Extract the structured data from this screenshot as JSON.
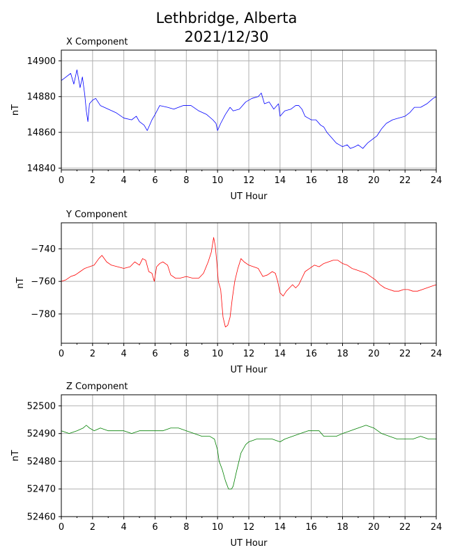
{
  "title_line1": "Lethbridge, Alberta",
  "title_line2": "2021/12/30",
  "chart_data": [
    {
      "type": "line",
      "title": "X Component",
      "xlabel": "UT Hour",
      "ylabel": "nT",
      "xlim": [
        0,
        24
      ],
      "ylim": [
        14839,
        14906
      ],
      "xticks": [
        0,
        2,
        4,
        6,
        8,
        10,
        12,
        14,
        16,
        18,
        20,
        22,
        24
      ],
      "yticks": [
        14840,
        14860,
        14880,
        14900
      ],
      "grid": true,
      "color": "#0000ff",
      "x": [
        0,
        0.3,
        0.6,
        0.8,
        1.0,
        1.1,
        1.2,
        1.35,
        1.5,
        1.6,
        1.7,
        1.8,
        2.0,
        2.2,
        2.5,
        3.0,
        3.5,
        4.0,
        4.5,
        4.8,
        5.0,
        5.3,
        5.5,
        5.8,
        6.0,
        6.3,
        6.8,
        7.2,
        7.8,
        8.3,
        8.8,
        9.3,
        9.7,
        9.9,
        10.0,
        10.2,
        10.5,
        10.8,
        11.0,
        11.4,
        11.8,
        12.2,
        12.6,
        12.8,
        13.0,
        13.3,
        13.6,
        13.9,
        14.0,
        14.3,
        14.7,
        15.0,
        15.2,
        15.4,
        15.6,
        15.8,
        16.0,
        16.3,
        16.6,
        16.8,
        17.0,
        17.3,
        17.6,
        17.8,
        18.0,
        18.3,
        18.5,
        18.8,
        19.0,
        19.3,
        19.6,
        19.9,
        20.2,
        20.5,
        20.8,
        21.2,
        21.6,
        22.0,
        22.3,
        22.6,
        23.0,
        23.4,
        23.8,
        24.0
      ],
      "y": [
        14889,
        14891,
        14893,
        14887,
        14895,
        14890,
        14885,
        14891,
        14881,
        14872,
        14866,
        14876,
        14878,
        14879,
        14875,
        14873,
        14871,
        14868,
        14867,
        14869,
        14866,
        14864,
        14861,
        14867,
        14870,
        14875,
        14874,
        14873,
        14875,
        14875,
        14872,
        14870,
        14867,
        14865,
        14861,
        14865,
        14870,
        14874,
        14872,
        14873,
        14877,
        14879,
        14880,
        14882,
        14876,
        14877,
        14873,
        14876,
        14869,
        14872,
        14873,
        14875,
        14875,
        14873,
        14869,
        14868,
        14867,
        14867,
        14864,
        14863,
        14860,
        14857,
        14854,
        14853,
        14852,
        14853,
        14851,
        14852,
        14853,
        14851,
        14854,
        14856,
        14858,
        14862,
        14865,
        14867,
        14868,
        14869,
        14871,
        14874,
        14874,
        14876,
        14879,
        14880
      ]
    },
    {
      "type": "line",
      "title": "Y Component",
      "xlabel": "UT Hour",
      "ylabel": "nT",
      "xlim": [
        0,
        24
      ],
      "ylim": [
        -798,
        -724
      ],
      "xticks": [
        0,
        2,
        4,
        6,
        8,
        10,
        12,
        14,
        16,
        18,
        20,
        22,
        24
      ],
      "yticks": [
        -740,
        -760,
        -780
      ],
      "grid": true,
      "color": "#ff0000",
      "x": [
        0,
        0.3,
        0.6,
        0.9,
        1.2,
        1.5,
        1.8,
        2.1,
        2.4,
        2.6,
        2.9,
        3.2,
        3.6,
        4.0,
        4.4,
        4.7,
        5.0,
        5.2,
        5.4,
        5.6,
        5.8,
        5.95,
        6.1,
        6.3,
        6.5,
        6.8,
        7.0,
        7.3,
        7.6,
        8.0,
        8.4,
        8.8,
        9.1,
        9.4,
        9.6,
        9.75,
        9.85,
        9.95,
        10.05,
        10.2,
        10.35,
        10.5,
        10.65,
        10.8,
        10.95,
        11.1,
        11.3,
        11.5,
        11.7,
        12.0,
        12.3,
        12.6,
        12.9,
        13.2,
        13.5,
        13.7,
        13.85,
        14.0,
        14.2,
        14.4,
        14.6,
        14.8,
        15.0,
        15.2,
        15.4,
        15.6,
        15.9,
        16.2,
        16.5,
        16.8,
        17.1,
        17.4,
        17.7,
        18.0,
        18.3,
        18.6,
        18.9,
        19.2,
        19.5,
        19.8,
        20.1,
        20.4,
        20.7,
        21.0,
        21.3,
        21.6,
        21.9,
        22.2,
        22.5,
        22.8,
        23.1,
        23.4,
        23.7,
        24.0
      ],
      "y": [
        -760,
        -759,
        -757,
        -756,
        -754,
        -752,
        -751,
        -750,
        -746,
        -744,
        -748,
        -750,
        -751,
        -752,
        -751,
        -748,
        -750,
        -746,
        -747,
        -754,
        -755,
        -760,
        -751,
        -749,
        -748,
        -750,
        -756,
        -758,
        -758,
        -757,
        -758,
        -758,
        -755,
        -748,
        -742,
        -733,
        -738,
        -748,
        -760,
        -765,
        -782,
        -788,
        -787,
        -782,
        -770,
        -760,
        -752,
        -746,
        -748,
        -750,
        -751,
        -752,
        -757,
        -756,
        -754,
        -755,
        -760,
        -767,
        -769,
        -766,
        -764,
        -762,
        -764,
        -762,
        -758,
        -754,
        -752,
        -750,
        -751,
        -749,
        -748,
        -747,
        -747,
        -749,
        -750,
        -752,
        -753,
        -754,
        -755,
        -757,
        -759,
        -762,
        -764,
        -765,
        -766,
        -766,
        -765,
        -765,
        -766,
        -766,
        -765,
        -764,
        -763,
        -762
      ]
    },
    {
      "type": "line",
      "title": "Z Component",
      "xlabel": "UT Hour",
      "ylabel": "nT",
      "xlim": [
        0,
        24
      ],
      "ylim": [
        52460,
        52504
      ],
      "xticks": [
        0,
        2,
        4,
        6,
        8,
        10,
        12,
        14,
        16,
        18,
        20,
        22,
        24
      ],
      "yticks": [
        52460,
        52470,
        52480,
        52490,
        52500
      ],
      "grid": true,
      "color": "#008000",
      "x": [
        0,
        0.5,
        1.0,
        1.4,
        1.6,
        1.8,
        2.1,
        2.5,
        3.0,
        3.5,
        4.0,
        4.5,
        5.0,
        5.5,
        6.0,
        6.5,
        7.0,
        7.5,
        8.0,
        8.5,
        9.0,
        9.5,
        9.8,
        10.0,
        10.1,
        10.3,
        10.5,
        10.7,
        10.9,
        11.0,
        11.2,
        11.5,
        11.8,
        12.0,
        12.5,
        13.0,
        13.5,
        14.0,
        14.3,
        14.8,
        15.3,
        15.8,
        16.2,
        16.5,
        16.8,
        17.2,
        17.6,
        18.0,
        18.5,
        19.0,
        19.5,
        20.0,
        20.5,
        21.0,
        21.5,
        22.0,
        22.5,
        23.0,
        23.5,
        24.0
      ],
      "y": [
        52491,
        52490,
        52491,
        52492,
        52493,
        52492,
        52491,
        52492,
        52491,
        52491,
        52491,
        52490,
        52491,
        52491,
        52491,
        52491,
        52492,
        52492,
        52491,
        52490,
        52489,
        52489,
        52488,
        52484,
        52480,
        52477,
        52473,
        52470,
        52470,
        52471,
        52476,
        52483,
        52486,
        52487,
        52488,
        52488,
        52488,
        52487,
        52488,
        52489,
        52490,
        52491,
        52491,
        52491,
        52489,
        52489,
        52489,
        52490,
        52491,
        52492,
        52493,
        52492,
        52490,
        52489,
        52488,
        52488,
        52488,
        52489,
        52488,
        52488
      ]
    }
  ]
}
